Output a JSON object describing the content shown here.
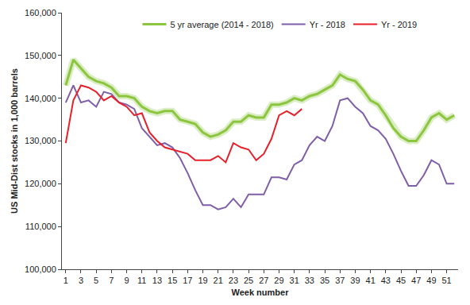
{
  "chart_data": {
    "type": "line",
    "xlabel": "Week number",
    "ylabel": "US Mid-Dist stocks in 1,000 barrels",
    "x": [
      1,
      2,
      3,
      4,
      5,
      6,
      7,
      8,
      9,
      10,
      11,
      12,
      13,
      14,
      15,
      16,
      17,
      18,
      19,
      20,
      21,
      22,
      23,
      24,
      25,
      26,
      27,
      28,
      29,
      30,
      31,
      32,
      33,
      34,
      35,
      36,
      37,
      38,
      39,
      40,
      41,
      42,
      43,
      44,
      45,
      46,
      47,
      48,
      49,
      50,
      51,
      52
    ],
    "series": [
      {
        "name": "5 yr average (2014 - 2018)",
        "color": "#8cc63e",
        "values": [
          143000,
          149000,
          147000,
          145000,
          144000,
          143500,
          142500,
          140500,
          140500,
          140000,
          138000,
          137000,
          136500,
          137000,
          137000,
          135000,
          134500,
          134000,
          132000,
          131000,
          131500,
          132500,
          134500,
          134500,
          136000,
          135500,
          135500,
          138500,
          138500,
          139000,
          140000,
          139500,
          140500,
          141000,
          142000,
          143000,
          145500,
          144500,
          144000,
          142000,
          139500,
          138500,
          136000,
          133000,
          131000,
          130000,
          130000,
          132500,
          135500,
          136500,
          135000,
          136000
        ]
      },
      {
        "name": "Yr - 2018",
        "color": "#7f5fa8",
        "values": [
          139000,
          143000,
          139000,
          139500,
          138000,
          141500,
          141000,
          139000,
          138500,
          137500,
          133000,
          131000,
          129000,
          129500,
          128500,
          126000,
          122500,
          118500,
          115000,
          115000,
          114000,
          114500,
          116500,
          114500,
          117500,
          117500,
          117500,
          121500,
          121500,
          121000,
          124500,
          125500,
          129000,
          131000,
          130000,
          133500,
          139500,
          140000,
          138000,
          136500,
          133500,
          132500,
          130500,
          127000,
          123000,
          119500,
          119500,
          122000,
          125500,
          124500,
          120000,
          120000
        ]
      },
      {
        "name": "Yr - 2019",
        "color": "#e8202a",
        "values": [
          129500,
          139500,
          143000,
          142500,
          141500,
          139500,
          140500,
          139000,
          138000,
          136000,
          136500,
          132000,
          130000,
          128500,
          128000,
          127500,
          127000,
          125500,
          125500,
          125500,
          126500,
          125000,
          129500,
          128500,
          128000,
          125500,
          127000,
          130500,
          136000,
          137000,
          136000,
          137500,
          null,
          null,
          null,
          null,
          null,
          null,
          null,
          null,
          null,
          null,
          null,
          null,
          null,
          null,
          null,
          null,
          null,
          null,
          null,
          null
        ]
      }
    ],
    "xlim": [
      0.5,
      52.5
    ],
    "ylim": [
      100000,
      160000
    ],
    "xticks": [
      1,
      3,
      5,
      7,
      9,
      11,
      13,
      15,
      17,
      19,
      21,
      23,
      25,
      27,
      29,
      31,
      33,
      35,
      37,
      39,
      41,
      43,
      45,
      47,
      49,
      51
    ],
    "yticks": [
      {
        "value": 100000,
        "label": "100,000"
      },
      {
        "value": 110000,
        "label": "110,000"
      },
      {
        "value": 120000,
        "label": "120,000"
      },
      {
        "value": 130000,
        "label": "130,000"
      },
      {
        "value": 140000,
        "label": "140,000"
      },
      {
        "value": 150000,
        "label": "150,000"
      },
      {
        "value": 160000,
        "label": "160,000"
      }
    ],
    "grid": false,
    "legend": "top"
  }
}
